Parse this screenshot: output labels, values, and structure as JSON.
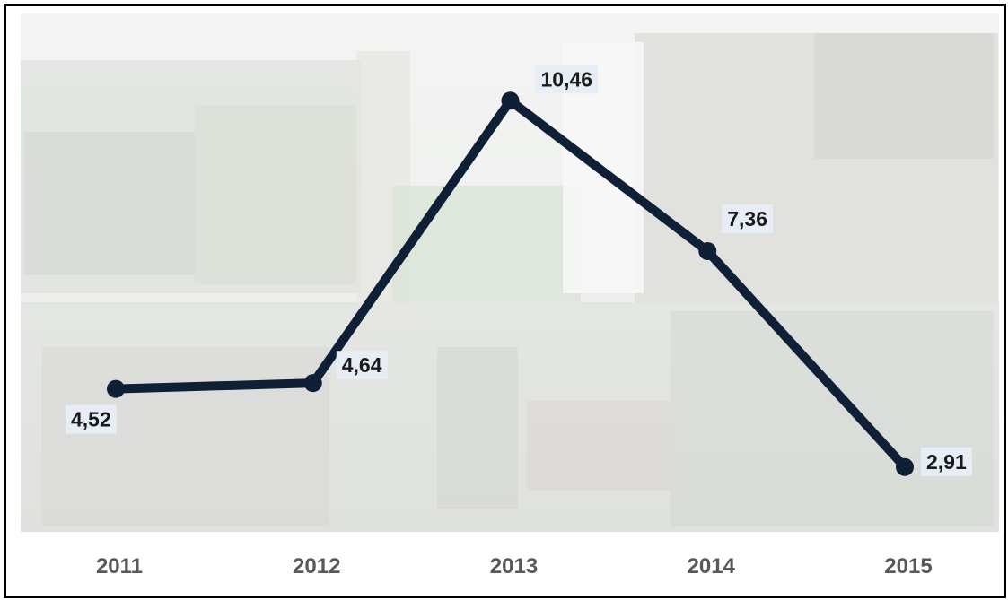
{
  "chart_data": {
    "type": "line",
    "title": "",
    "xlabel": "",
    "ylabel": "",
    "categories": [
      "2011",
      "2012",
      "2013",
      "2014",
      "2015"
    ],
    "series": [
      {
        "values": [
          4.52,
          4.64,
          10.46,
          7.36,
          2.91
        ],
        "labels": [
          "4,52",
          "4,64",
          "10,46",
          "7,36",
          "2,91"
        ]
      }
    ],
    "ylim": [
      2.0,
      11.0
    ],
    "grid": false,
    "legend": "none",
    "line_color": "#0f1f36",
    "label_bg_color": "#e6edf4",
    "tick_color": "#595959"
  }
}
